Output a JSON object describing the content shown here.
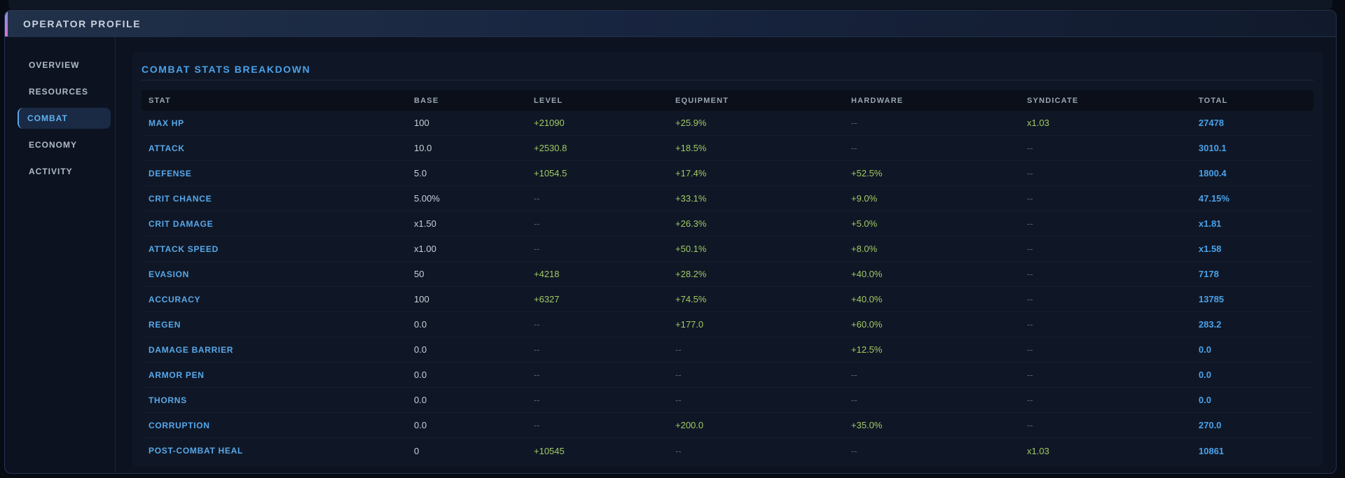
{
  "window": {
    "title": "OPERATOR PROFILE"
  },
  "sidebar": {
    "items": [
      {
        "label": "OVERVIEW",
        "selected": false
      },
      {
        "label": "RESOURCES",
        "selected": false
      },
      {
        "label": "COMBAT",
        "selected": true
      },
      {
        "label": "ECONOMY",
        "selected": false
      },
      {
        "label": "ACTIVITY",
        "selected": false
      }
    ]
  },
  "panel": {
    "title": "COMBAT STATS BREAKDOWN"
  },
  "table": {
    "columns": [
      "STAT",
      "BASE",
      "LEVEL",
      "EQUIPMENT",
      "HARDWARE",
      "SYNDICATE",
      "TOTAL"
    ],
    "rows": [
      {
        "stat": "MAX HP",
        "base": "100",
        "level": "+21090",
        "equipment": "+25.9%",
        "hardware": "--",
        "syndicate": "x1.03",
        "total": "27478"
      },
      {
        "stat": "ATTACK",
        "base": "10.0",
        "level": "+2530.8",
        "equipment": "+18.5%",
        "hardware": "--",
        "syndicate": "--",
        "total": "3010.1"
      },
      {
        "stat": "DEFENSE",
        "base": "5.0",
        "level": "+1054.5",
        "equipment": "+17.4%",
        "hardware": "+52.5%",
        "syndicate": "--",
        "total": "1800.4"
      },
      {
        "stat": "CRIT CHANCE",
        "base": "5.00%",
        "level": "--",
        "equipment": "+33.1%",
        "hardware": "+9.0%",
        "syndicate": "--",
        "total": "47.15%"
      },
      {
        "stat": "CRIT DAMAGE",
        "base": "x1.50",
        "level": "--",
        "equipment": "+26.3%",
        "hardware": "+5.0%",
        "syndicate": "--",
        "total": "x1.81"
      },
      {
        "stat": "ATTACK SPEED",
        "base": "x1.00",
        "level": "--",
        "equipment": "+50.1%",
        "hardware": "+8.0%",
        "syndicate": "--",
        "total": "x1.58"
      },
      {
        "stat": "EVASION",
        "base": "50",
        "level": "+4218",
        "equipment": "+28.2%",
        "hardware": "+40.0%",
        "syndicate": "--",
        "total": "7178"
      },
      {
        "stat": "ACCURACY",
        "base": "100",
        "level": "+6327",
        "equipment": "+74.5%",
        "hardware": "+40.0%",
        "syndicate": "--",
        "total": "13785"
      },
      {
        "stat": "REGEN",
        "base": "0.0",
        "level": "--",
        "equipment": "+177.0",
        "hardware": "+60.0%",
        "syndicate": "--",
        "total": "283.2"
      },
      {
        "stat": "DAMAGE BARRIER",
        "base": "0.0",
        "level": "--",
        "equipment": "--",
        "hardware": "+12.5%",
        "syndicate": "--",
        "total": "0.0"
      },
      {
        "stat": "ARMOR PEN",
        "base": "0.0",
        "level": "--",
        "equipment": "--",
        "hardware": "--",
        "syndicate": "--",
        "total": "0.0"
      },
      {
        "stat": "THORNS",
        "base": "0.0",
        "level": "--",
        "equipment": "--",
        "hardware": "--",
        "syndicate": "--",
        "total": "0.0"
      },
      {
        "stat": "CORRUPTION",
        "base": "0.0",
        "level": "--",
        "equipment": "+200.0",
        "hardware": "+35.0%",
        "syndicate": "--",
        "total": "270.0"
      },
      {
        "stat": "POST-COMBAT HEAL",
        "base": "0",
        "level": "+10545",
        "equipment": "--",
        "hardware": "--",
        "syndicate": "x1.03",
        "total": "10861"
      }
    ]
  },
  "colors": {
    "accent_blue": "#4aa1e9",
    "accent_green": "#a2c964",
    "muted_dash": "#566070",
    "base_text": "#c9d0da",
    "stat_text": "#58a8ea",
    "accent_bar_top": "#7b96dd",
    "accent_bar_bottom": "#d973d6",
    "scrollbar": "#4aa0e8"
  }
}
